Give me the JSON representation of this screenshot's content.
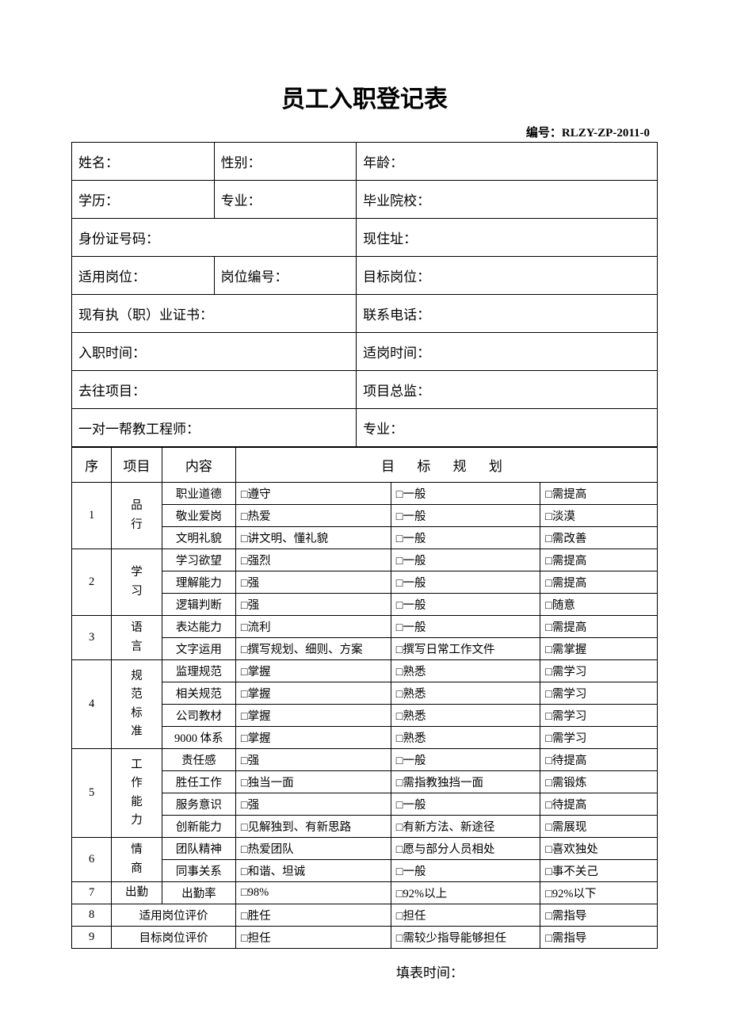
{
  "title": "员工入职登记表",
  "doc_code_label": "编号：",
  "doc_code": "RLZY-ZP-2011-0",
  "fill_time_label": "填表时间：",
  "info": {
    "r1c1": "姓名：",
    "r1c2": "性别：",
    "r1c3": "年龄：",
    "r2c1": "学历：",
    "r2c2": "专业：",
    "r2c3": "毕业院校：",
    "r3c1": "身份证号码：",
    "r3c2": "现住址：",
    "r4c1": "适用岗位：",
    "r4c2": "岗位编号：",
    "r4c3": "目标岗位：",
    "r5c1": "现有执（职）业证书：",
    "r5c2": "联系电话：",
    "r6c1": "入职时间：",
    "r6c2": "适岗时间：",
    "r7c1": "去往项目：",
    "r7c2": "项目总监：",
    "r8c1": "一对一帮教工程师：",
    "r8c2": "专业："
  },
  "header": {
    "seq": "序",
    "cat": "项目",
    "item": "内容",
    "goal": "目 标 规 划"
  },
  "rows": [
    {
      "seq": "1",
      "cat": "品\n行",
      "items": [
        {
          "name": "职业道德",
          "o1": "□遵守",
          "o2": "□一般",
          "o3": "□需提高"
        },
        {
          "name": "敬业爱岗",
          "o1": "□热爱",
          "o2": "□一般",
          "o3": "□淡漠"
        },
        {
          "name": "文明礼貌",
          "o1": "□讲文明、懂礼貌",
          "o2": "□一般",
          "o3": "□需改善"
        }
      ]
    },
    {
      "seq": "2",
      "cat": "学\n习",
      "items": [
        {
          "name": "学习欲望",
          "o1": "□强烈",
          "o2": "□一般",
          "o3": "□需提高"
        },
        {
          "name": "理解能力",
          "o1": "□强",
          "o2": "□一般",
          "o3": "□需提高"
        },
        {
          "name": "逻辑判断",
          "o1": "□强",
          "o2": "□一般",
          "o3": "□随意"
        }
      ]
    },
    {
      "seq": "3",
      "cat": "语\n言",
      "items": [
        {
          "name": "表达能力",
          "o1": "□流利",
          "o2": "□一般",
          "o3": "□需提高"
        },
        {
          "name": "文字运用",
          "o1": "□撰写规划、细则、方案",
          "o2": "□撰写日常工作文件",
          "o3": "□需掌握"
        }
      ]
    },
    {
      "seq": "4",
      "cat": "规\n范\n标\n准",
      "items": [
        {
          "name": "监理规范",
          "o1": "□掌握",
          "o2": "□熟悉",
          "o3": "□需学习"
        },
        {
          "name": "相关规范",
          "o1": "□掌握",
          "o2": "□熟悉",
          "o3": "□需学习"
        },
        {
          "name": "公司教材",
          "o1": "□掌握",
          "o2": "□熟悉",
          "o3": "□需学习"
        },
        {
          "name": "9000 体系",
          "o1": "□掌握",
          "o2": "□熟悉",
          "o3": "□需学习"
        }
      ]
    },
    {
      "seq": "5",
      "cat": "工\n作\n能\n力",
      "items": [
        {
          "name": "责任感",
          "o1": "□强",
          "o2": "□一般",
          "o3": "□待提高"
        },
        {
          "name": "胜任工作",
          "o1": "□独当一面",
          "o2": "□需指教独挡一面",
          "o3": "□需锻炼"
        },
        {
          "name": "服务意识",
          "o1": "□强",
          "o2": "□一般",
          "o3": "□待提高"
        },
        {
          "name": "创新能力",
          "o1": "□见解独到、有新思路",
          "o2": "□有新方法、新途径",
          "o3": "□需展现"
        }
      ]
    },
    {
      "seq": "6",
      "cat": "情\n商",
      "items": [
        {
          "name": "团队精神",
          "o1": "□热爱团队",
          "o2": "□愿与部分人员相处",
          "o3": "□喜欢独处"
        },
        {
          "name": "同事关系",
          "o1": "□和谐、坦诚",
          "o2": "□一般",
          "o3": "□事不关己"
        }
      ]
    },
    {
      "seq": "7",
      "cat": "出勤",
      "items": [
        {
          "name": "出勤率",
          "o1": "□98%",
          "o2": "□92%以上",
          "o3": "□92%以下"
        }
      ]
    },
    {
      "seq": "8",
      "cat_item": "适用岗位评价",
      "o1": "□胜任",
      "o2": "□担任",
      "o3": "□需指导"
    },
    {
      "seq": "9",
      "cat_item": "目标岗位评价",
      "o1": "□担任",
      "o2": "□需较少指导能够担任",
      "o3": "□需指导"
    }
  ],
  "layout": {
    "col_widths_info": [
      "24.3%",
      "24.3%",
      "51.4%"
    ],
    "col_widths_eval": [
      "6.8%",
      "8.6%",
      "12.6%",
      "26.5%",
      "25.5%",
      "20%"
    ]
  }
}
